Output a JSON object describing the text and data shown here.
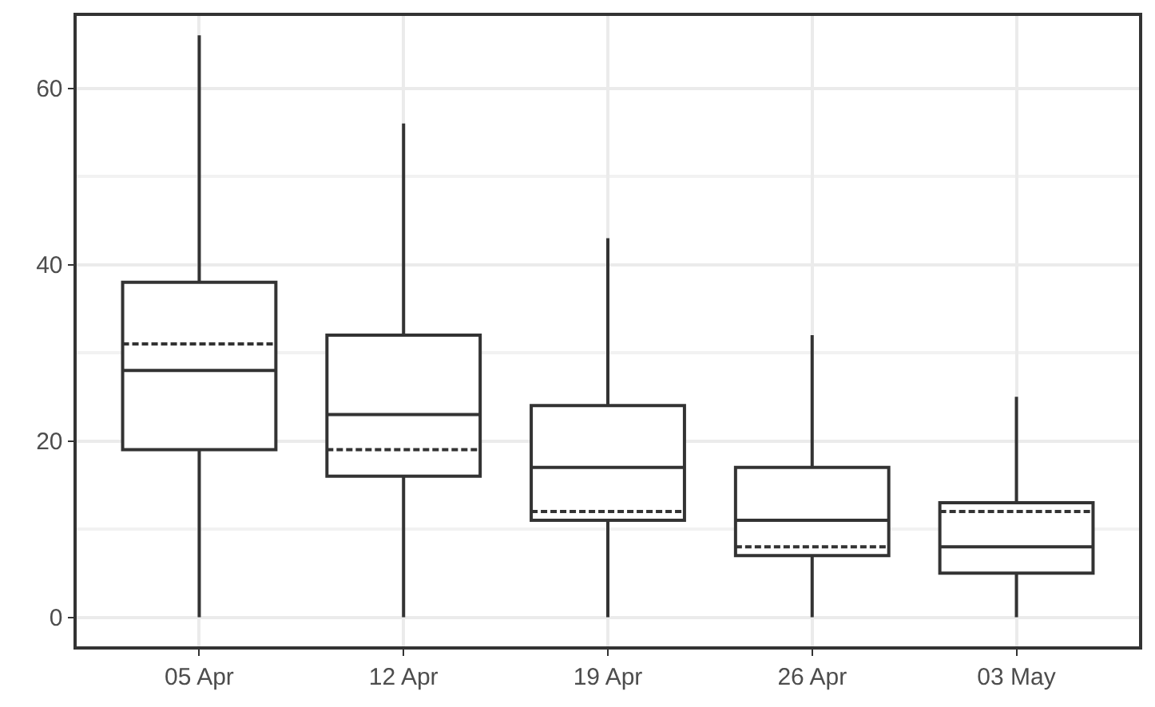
{
  "chart_data": {
    "type": "box",
    "categories": [
      "05 Apr",
      "12 Apr",
      "19 Apr",
      "26 Apr",
      "03 May"
    ],
    "boxes": [
      {
        "low": 0,
        "q1": 19,
        "median": 28,
        "q3": 38,
        "high": 66,
        "mean": 31
      },
      {
        "low": 0,
        "q1": 16,
        "median": 23,
        "q3": 32,
        "high": 56,
        "mean": 19
      },
      {
        "low": 0,
        "q1": 11,
        "median": 17,
        "q3": 24,
        "high": 43,
        "mean": 12
      },
      {
        "low": 0,
        "q1": 7,
        "median": 11,
        "q3": 17,
        "high": 32,
        "mean": 8
      },
      {
        "low": 0,
        "q1": 5,
        "median": 8,
        "q3": 13,
        "high": 25,
        "mean": 12
      }
    ],
    "color": "#333333",
    "ylim": [
      -3.3,
      68.2
    ],
    "yticks": [
      0,
      20,
      40,
      60
    ],
    "grid": true,
    "legend": false
  }
}
